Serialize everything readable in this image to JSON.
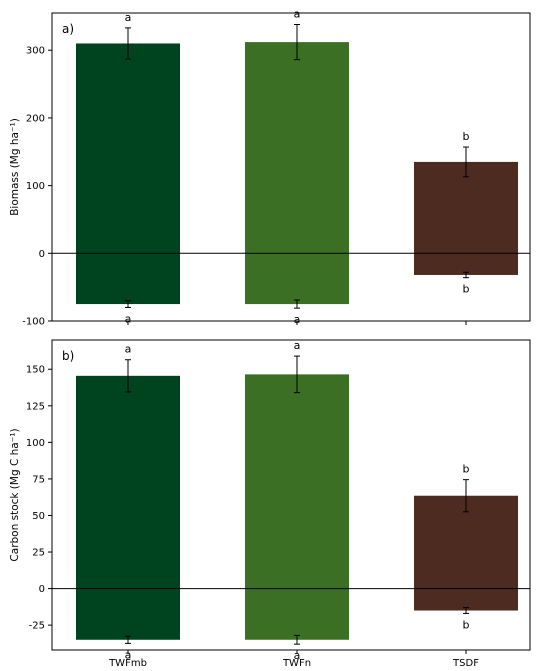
{
  "colors": {
    "TWFmb": "#00441f",
    "TWFn": "#3b7024",
    "TSDF": "#4d2b20"
  },
  "chart_data": [
    {
      "type": "bar",
      "panel_label": "a)",
      "ylabel": "Biomass (Mg ha⁻¹)",
      "categories": [
        "TWFmb",
        "TWFn",
        "TSDF"
      ],
      "ylim": [
        -100,
        355
      ],
      "yticks": [
        -100,
        0,
        100,
        200,
        300
      ],
      "zero_line": true,
      "series": [
        {
          "values": [
            310,
            312,
            135
          ],
          "errors": [
            23,
            26,
            22
          ],
          "letters": [
            "a",
            "a",
            "b"
          ]
        },
        {
          "values": [
            -75,
            -75,
            -32
          ],
          "errors": [
            5,
            6,
            4
          ],
          "letters": [
            "a",
            "a",
            "b"
          ]
        }
      ]
    },
    {
      "type": "bar",
      "panel_label": "b)",
      "ylabel": "Carbon stock (Mg C ha⁻¹)",
      "categories": [
        "TWFmb",
        "TWFn",
        "TSDF"
      ],
      "xticklabels": [
        "TWFmb",
        "TWFn",
        "TSDF"
      ],
      "ylim": [
        -42,
        170
      ],
      "yticks": [
        -25,
        0,
        25,
        50,
        75,
        100,
        125,
        150
      ],
      "zero_line": true,
      "series": [
        {
          "values": [
            145.5,
            146.5,
            63.5
          ],
          "errors": [
            11,
            12.5,
            11
          ],
          "letters": [
            "a",
            "a",
            "b"
          ]
        },
        {
          "values": [
            -35,
            -35,
            -15
          ],
          "errors": [
            2.5,
            3,
            2
          ],
          "letters": [
            "a",
            "a",
            "b"
          ]
        }
      ]
    }
  ]
}
